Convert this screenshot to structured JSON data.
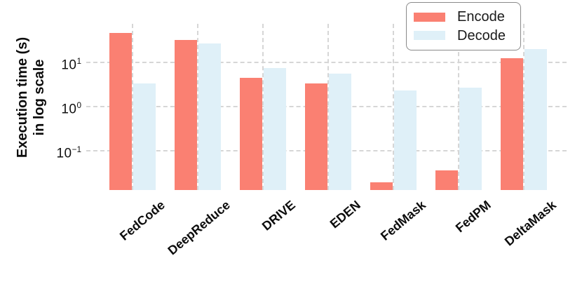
{
  "chart_data": {
    "type": "bar",
    "yscale": "log",
    "ylabel_lines": [
      "Execution time (s)",
      "in log scale"
    ],
    "xlabel": "",
    "title": "",
    "categories": [
      "FedCode",
      "DeepReduce",
      "DRIVE",
      "EDEN",
      "FedMask",
      "FedPM",
      "DeltaMask"
    ],
    "series": [
      {
        "name": "Encode",
        "color": "#FA8072",
        "values": [
          44,
          30,
          4.3,
          3.2,
          0.019,
          0.035,
          12
        ]
      },
      {
        "name": "Decode",
        "color": "#DFF0F8",
        "values": [
          3.2,
          25,
          7.1,
          5.4,
          2.2,
          2.6,
          19
        ]
      }
    ],
    "ylim": [
      0.0128,
      70
    ],
    "yticks": [
      {
        "base": "10",
        "exp": "1",
        "value": 10
      },
      {
        "base": "10",
        "exp": "0",
        "value": 1
      },
      {
        "base": "10",
        "exp": "−1",
        "value": 0.1
      }
    ],
    "grid": "dashed",
    "grid_color": "#D6D6D6",
    "legend_position": "top-right"
  }
}
